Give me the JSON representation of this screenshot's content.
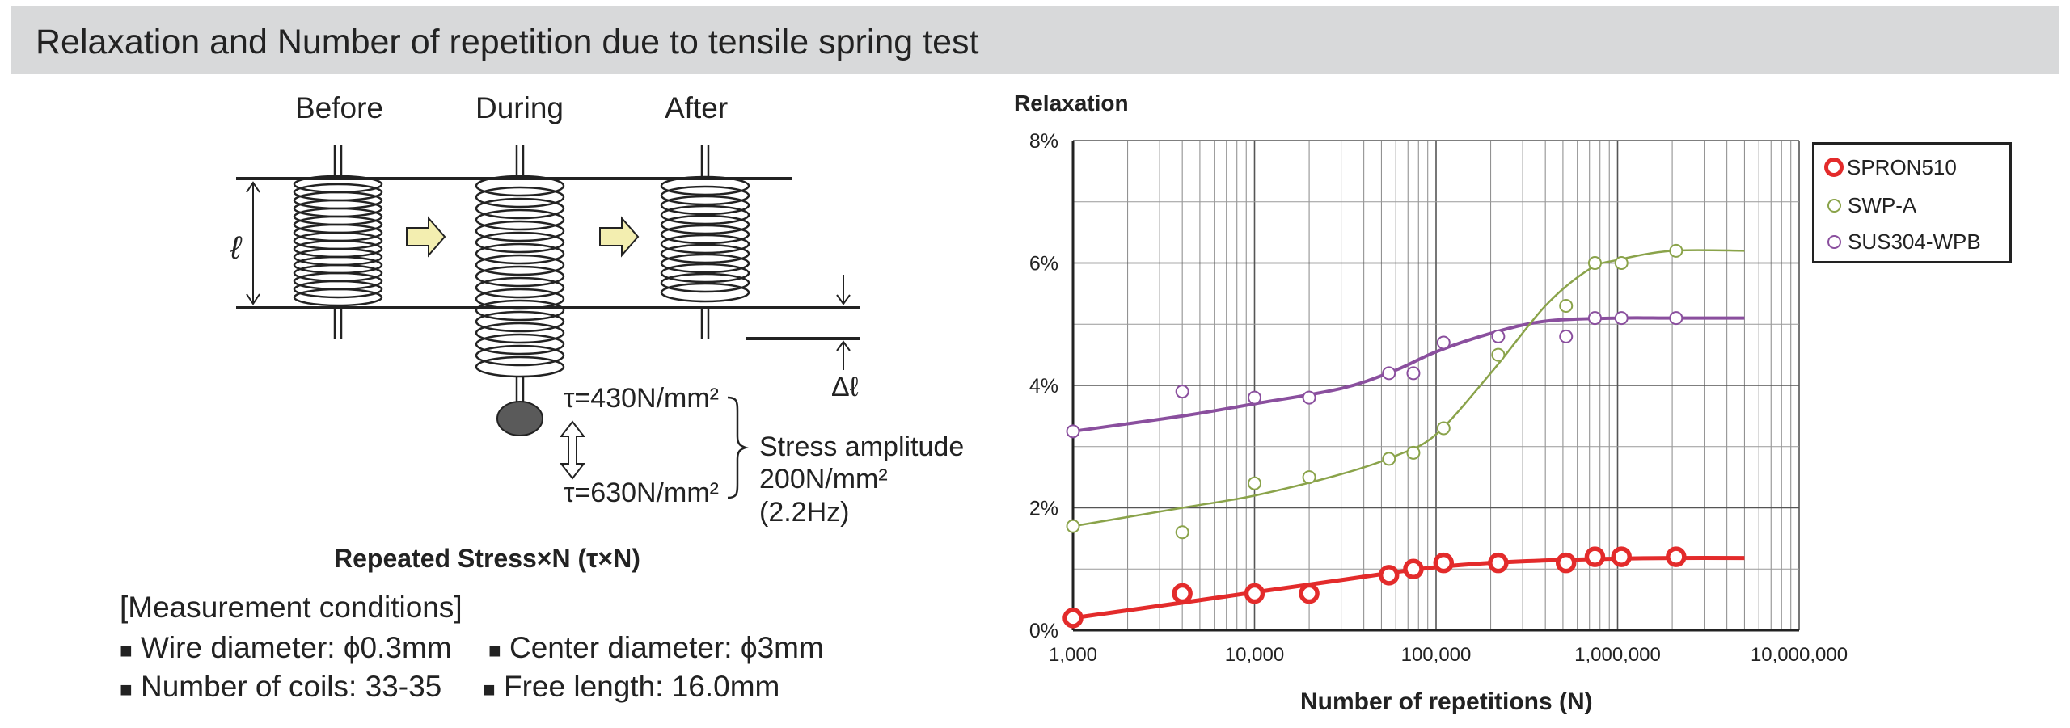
{
  "header": {
    "title": "Relaxation and Number of repetition due to tensile spring test"
  },
  "diagram": {
    "stages": [
      "Before",
      "During",
      "After"
    ],
    "length_symbol": "ℓ",
    "delta_symbol": "Δℓ",
    "tau_high": "τ=430N/mm²",
    "tau_low": "τ=630N/mm²",
    "amplitude_line1": "Stress amplitude",
    "amplitude_line2": "200N/mm²",
    "amplitude_line3": "(2.2Hz)",
    "caption": "Repeated Stress×N (τ×N)"
  },
  "conditions": {
    "heading": "[Measurement conditions]",
    "items": [
      "Wire diameter: ϕ0.3mm",
      "Center diameter: ϕ3mm",
      "Number of coils: 33-35",
      "Free length: 16.0mm"
    ],
    "bullet": "■"
  },
  "chart_data": {
    "type": "line",
    "title": "",
    "ylabel": "Relaxation",
    "xlabel": "Number of repetitions (N)",
    "x_scale": "log",
    "xlim": [
      1000,
      10000000
    ],
    "ylim": [
      0,
      8
    ],
    "y_ticks": [
      "0%",
      "2%",
      "4%",
      "6%",
      "8%"
    ],
    "x_ticks": [
      "1,000",
      "10,000",
      "100,000",
      "1,000,000",
      "10,000,000"
    ],
    "grid": true,
    "legend_position": "top-right",
    "series": [
      {
        "name": "SPRON510",
        "color": "#e32b2b",
        "points": [
          [
            1000,
            0.2
          ],
          [
            4000,
            0.6
          ],
          [
            10000,
            0.6
          ],
          [
            20000,
            0.6
          ],
          [
            55000,
            0.9
          ],
          [
            75000,
            1.0
          ],
          [
            110000,
            1.1
          ],
          [
            220000,
            1.1
          ],
          [
            520000,
            1.1
          ],
          [
            750000,
            1.2
          ],
          [
            1050000,
            1.2
          ],
          [
            2100000,
            1.2
          ]
        ],
        "curve": [
          [
            1000,
            0.2
          ],
          [
            4000,
            0.45
          ],
          [
            10000,
            0.62
          ],
          [
            30000,
            0.82
          ],
          [
            60000,
            0.95
          ],
          [
            100000,
            1.03
          ],
          [
            200000,
            1.1
          ],
          [
            400000,
            1.14
          ],
          [
            1000000,
            1.17
          ],
          [
            2000000,
            1.18
          ],
          [
            5000000,
            1.18
          ]
        ]
      },
      {
        "name": "SWP-A",
        "color": "#8aa34a",
        "points": [
          [
            1000,
            1.7
          ],
          [
            4000,
            1.6
          ],
          [
            10000,
            2.4
          ],
          [
            20000,
            2.5
          ],
          [
            55000,
            2.8
          ],
          [
            75000,
            2.9
          ],
          [
            110000,
            3.3
          ],
          [
            220000,
            4.5
          ],
          [
            520000,
            5.3
          ],
          [
            750000,
            6.0
          ],
          [
            1050000,
            6.0
          ],
          [
            2100000,
            6.2
          ]
        ],
        "curve": [
          [
            1000,
            1.7
          ],
          [
            4000,
            2.0
          ],
          [
            10000,
            2.2
          ],
          [
            30000,
            2.55
          ],
          [
            60000,
            2.85
          ],
          [
            100000,
            3.2
          ],
          [
            200000,
            4.2
          ],
          [
            400000,
            5.3
          ],
          [
            700000,
            5.9
          ],
          [
            1000000,
            6.05
          ],
          [
            2000000,
            6.2
          ],
          [
            5000000,
            6.2
          ]
        ]
      },
      {
        "name": "SUS304-WPB",
        "color": "#8a4f9e",
        "points": [
          [
            1000,
            3.25
          ],
          [
            4000,
            3.9
          ],
          [
            10000,
            3.8
          ],
          [
            20000,
            3.8
          ],
          [
            55000,
            4.2
          ],
          [
            75000,
            4.2
          ],
          [
            110000,
            4.7
          ],
          [
            220000,
            4.8
          ],
          [
            520000,
            4.8
          ],
          [
            750000,
            5.1
          ],
          [
            1050000,
            5.1
          ],
          [
            2100000,
            5.1
          ]
        ],
        "curve": [
          [
            1000,
            3.25
          ],
          [
            4000,
            3.5
          ],
          [
            10000,
            3.7
          ],
          [
            30000,
            3.95
          ],
          [
            60000,
            4.25
          ],
          [
            100000,
            4.55
          ],
          [
            200000,
            4.85
          ],
          [
            400000,
            5.05
          ],
          [
            1000000,
            5.1
          ],
          [
            2000000,
            5.1
          ],
          [
            5000000,
            5.1
          ]
        ]
      }
    ]
  }
}
